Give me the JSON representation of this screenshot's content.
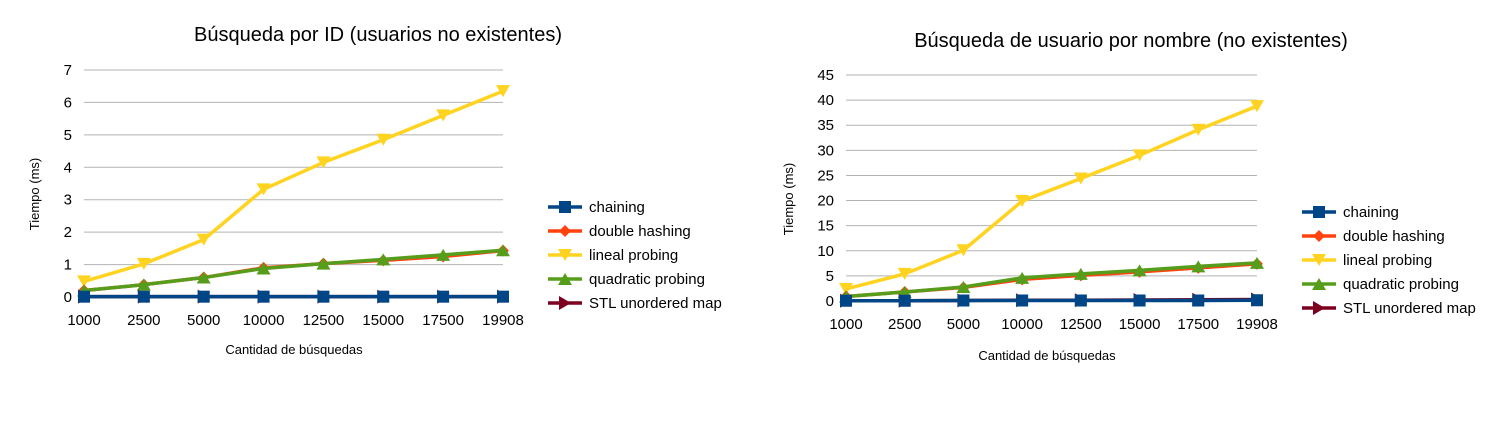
{
  "chart_data": [
    {
      "type": "line",
      "title": "Búsqueda por ID (usuarios no existentes)",
      "xlabel": "Cantidad de búsquedas",
      "ylabel": "Tiempo (ms)",
      "categories": [
        "1000",
        "2500",
        "5000",
        "10000",
        "12500",
        "15000",
        "17500",
        "19908"
      ],
      "ylim": [
        0,
        7
      ],
      "yticks": [
        "0",
        "1",
        "2",
        "3",
        "4",
        "5",
        "6",
        "7"
      ],
      "grid": "horizontal",
      "legend_position": "right",
      "series": [
        {
          "name": "chaining",
          "color": "#004586",
          "marker": "square",
          "values": [
            0.01,
            0.01,
            0.01,
            0.01,
            0.01,
            0.01,
            0.01,
            0.01
          ]
        },
        {
          "name": "double hashing",
          "color": "#ff420e",
          "marker": "diamond",
          "values": [
            0.2,
            0.38,
            0.6,
            0.9,
            1.03,
            1.13,
            1.25,
            1.43
          ]
        },
        {
          "name": "lineal probing",
          "color": "#ffd320",
          "marker": "triangle-down",
          "values": [
            0.48,
            1.02,
            1.77,
            3.32,
            4.15,
            4.85,
            5.6,
            6.35
          ]
        },
        {
          "name": "quadratic probing",
          "color": "#579d1c",
          "marker": "triangle-up",
          "values": [
            0.2,
            0.38,
            0.6,
            0.88,
            1.03,
            1.16,
            1.3,
            1.44
          ]
        },
        {
          "name": "STL unordered map",
          "color": "#7e0021",
          "marker": "triangle-right",
          "values": [
            0.01,
            0.01,
            0.01,
            0.01,
            0.01,
            0.01,
            0.01,
            0.01
          ]
        }
      ]
    },
    {
      "type": "line",
      "title": "Búsqueda de usuario por nombre (no existentes)",
      "xlabel": "Cantidad de búsquedas",
      "ylabel": "Tiempo (ms)",
      "categories": [
        "1000",
        "2500",
        "5000",
        "10000",
        "12500",
        "15000",
        "17500",
        "19908"
      ],
      "ylim": [
        0,
        45
      ],
      "yticks": [
        "0",
        "5",
        "10",
        "15",
        "20",
        "25",
        "30",
        "35",
        "40",
        "45"
      ],
      "grid": "horizontal",
      "legend_position": "right",
      "series": [
        {
          "name": "chaining",
          "color": "#004586",
          "marker": "square",
          "values": [
            0.05,
            0.05,
            0.1,
            0.1,
            0.1,
            0.1,
            0.1,
            0.15
          ]
        },
        {
          "name": "double hashing",
          "color": "#ff420e",
          "marker": "diamond",
          "values": [
            0.9,
            1.8,
            2.7,
            4.3,
            5.1,
            5.8,
            6.6,
            7.4
          ]
        },
        {
          "name": "lineal probing",
          "color": "#ffd320",
          "marker": "triangle-down",
          "values": [
            2.4,
            5.4,
            10.1,
            19.9,
            24.4,
            29.0,
            34.1,
            38.8
          ]
        },
        {
          "name": "quadratic probing",
          "color": "#579d1c",
          "marker": "triangle-up",
          "values": [
            0.9,
            1.8,
            2.8,
            4.6,
            5.4,
            6.1,
            6.9,
            7.6
          ]
        },
        {
          "name": "STL unordered map",
          "color": "#7e0021",
          "marker": "triangle-right",
          "values": [
            0.05,
            0.05,
            0.1,
            0.15,
            0.15,
            0.2,
            0.25,
            0.3
          ]
        }
      ]
    }
  ]
}
